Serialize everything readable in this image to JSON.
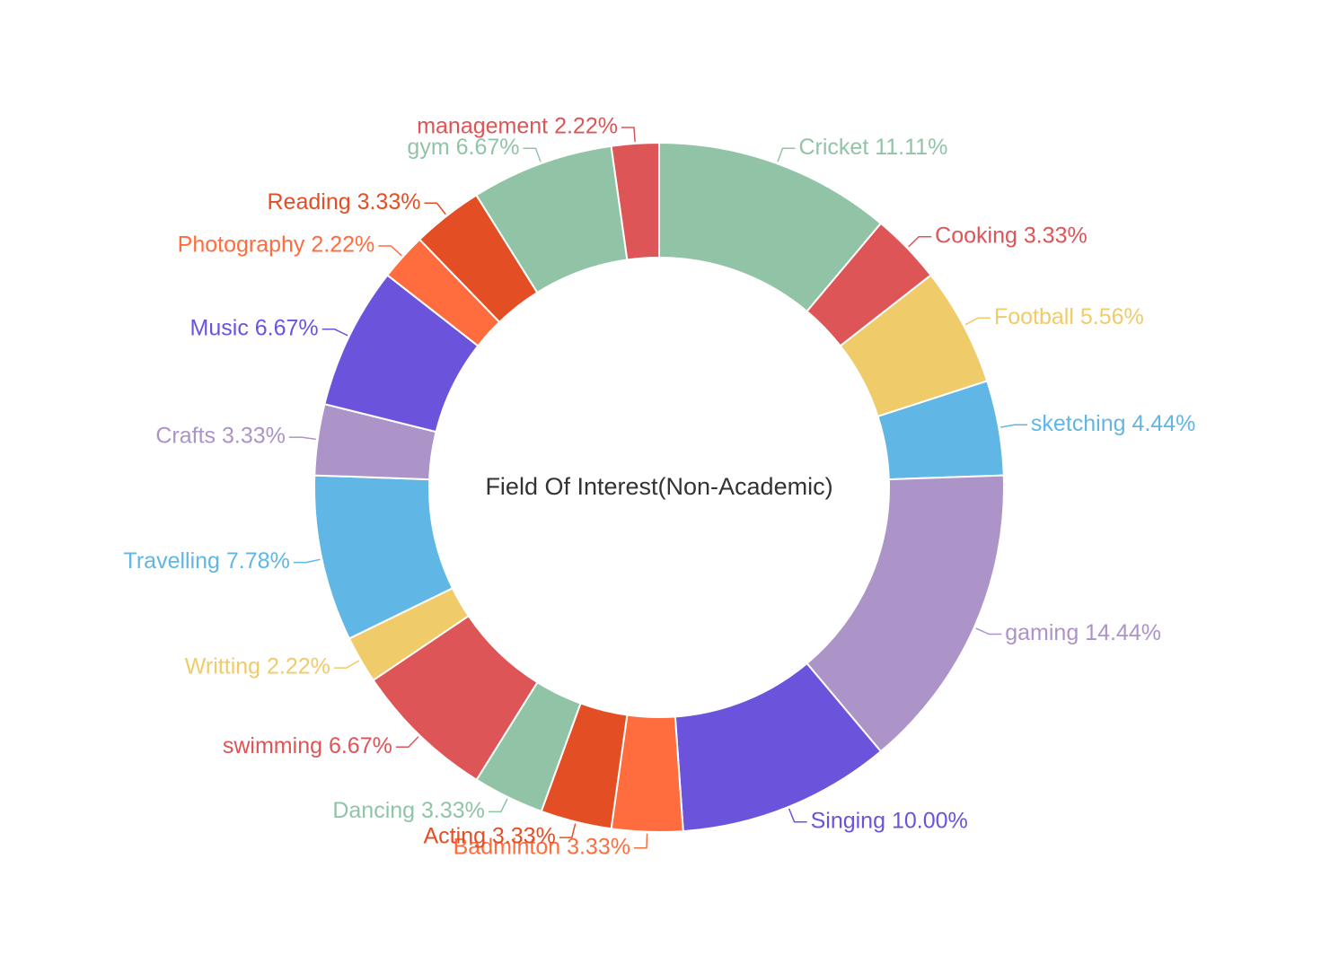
{
  "chart_data": {
    "type": "pie",
    "title": "Field Of Interest(Non-Academic)",
    "donut": true,
    "label_format": "{name} {percent}",
    "slices": [
      {
        "name": "Cricket",
        "value": 11.11,
        "percent_label": "11.11%",
        "color": "#91c4a7"
      },
      {
        "name": "Cooking",
        "value": 3.33,
        "percent_label": "3.33%",
        "color": "#dd5557"
      },
      {
        "name": "Football",
        "value": 5.56,
        "percent_label": "5.56%",
        "color": "#efcb6a"
      },
      {
        "name": "sketching",
        "value": 4.44,
        "percent_label": "4.44%",
        "color": "#60b6e4"
      },
      {
        "name": "gaming",
        "value": 14.44,
        "percent_label": "14.44%",
        "color": "#ac93c8"
      },
      {
        "name": "Singing",
        "value": 10.0,
        "percent_label": "10.00%",
        "color": "#6c53dc"
      },
      {
        "name": "Badminton",
        "value": 3.33,
        "percent_label": "3.33%",
        "color": "#ff6d3e"
      },
      {
        "name": "Acting",
        "value": 3.33,
        "percent_label": "3.33%",
        "color": "#e44e25"
      },
      {
        "name": "Dancing",
        "value": 3.33,
        "percent_label": "3.33%",
        "color": "#91c4a7"
      },
      {
        "name": "swimming",
        "value": 6.67,
        "percent_label": "6.67%",
        "color": "#dd5557"
      },
      {
        "name": "Writting",
        "value": 2.22,
        "percent_label": "2.22%",
        "color": "#efcb6a"
      },
      {
        "name": "Travelling",
        "value": 7.78,
        "percent_label": "7.78%",
        "color": "#60b6e4"
      },
      {
        "name": "Crafts",
        "value": 3.33,
        "percent_label": "3.33%",
        "color": "#ac93c8"
      },
      {
        "name": "Music",
        "value": 6.67,
        "percent_label": "6.67%",
        "color": "#6c53dc"
      },
      {
        "name": "Photography",
        "value": 2.22,
        "percent_label": "2.22%",
        "color": "#ff6d3e"
      },
      {
        "name": "Reading",
        "value": 3.33,
        "percent_label": "3.33%",
        "color": "#e44e25"
      },
      {
        "name": "gym",
        "value": 6.67,
        "percent_label": "6.67%",
        "color": "#91c4a7"
      },
      {
        "name": "management",
        "value": 2.22,
        "percent_label": "2.22%",
        "color": "#dd5557"
      }
    ]
  }
}
